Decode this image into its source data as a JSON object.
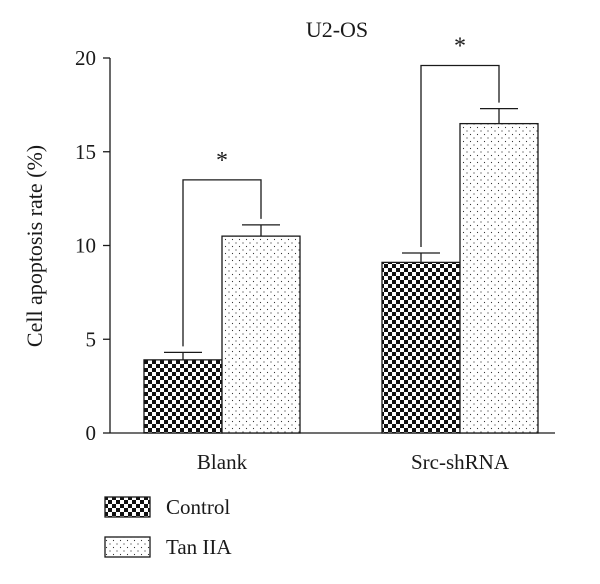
{
  "chart_data": {
    "type": "bar",
    "title": "U2-OS",
    "ylabel": "Cell apoptosis rate (%)",
    "xlabel": "",
    "ylim": [
      0,
      20
    ],
    "yticks": [
      0,
      5,
      10,
      15,
      20
    ],
    "categories": [
      "Blank",
      "Src-shRNA"
    ],
    "series": [
      {
        "name": "Control",
        "pattern": "checker",
        "values": [
          3.9,
          9.1
        ],
        "errors": [
          0.4,
          0.5
        ]
      },
      {
        "name": "Tan IIA",
        "pattern": "dots",
        "values": [
          10.5,
          16.5
        ],
        "errors": [
          0.6,
          0.8
        ]
      }
    ],
    "annotations": [
      {
        "category": 0,
        "text": "*",
        "bracket_levels": [
          4.3,
          11.1,
          13.5
        ]
      },
      {
        "category": 1,
        "text": "*",
        "bracket_levels": [
          9.6,
          17.3,
          19.6
        ]
      }
    ],
    "legend": {
      "placement": "bottom-left"
    },
    "grid": false,
    "colors": {
      "ink": "#1a1a1a",
      "background": "#ffffff"
    }
  }
}
